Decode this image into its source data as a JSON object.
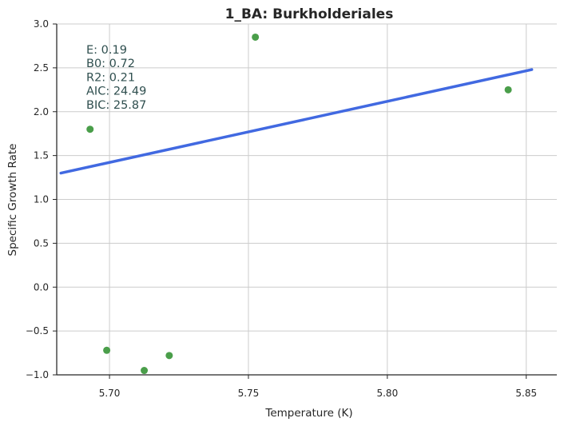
{
  "chart_data": {
    "type": "scatter",
    "title": "1_BA: Burkholderiales",
    "xlabel": "Temperature (K)",
    "ylabel": "Specific Growth Rate",
    "xlim": [
      5.681,
      5.861
    ],
    "ylim": [
      -1.0,
      3.0
    ],
    "xticks": [
      5.7,
      5.75,
      5.8,
      5.85
    ],
    "xtick_labels": [
      "5.70",
      "5.75",
      "5.80",
      "5.85"
    ],
    "yticks": [
      -1.0,
      -0.5,
      0.0,
      0.5,
      1.0,
      1.5,
      2.0,
      2.5,
      3.0
    ],
    "ytick_labels": [
      "−1.0",
      "−0.5",
      "0.0",
      "0.5",
      "1.0",
      "1.5",
      "2.0",
      "2.5",
      "3.0"
    ],
    "grid": true,
    "points": {
      "color": "#4a9e4a",
      "x": [
        5.693,
        5.699,
        5.7125,
        5.7215,
        5.7525,
        5.8435
      ],
      "y": [
        1.8,
        -0.72,
        -0.95,
        -0.78,
        2.85,
        2.25
      ]
    },
    "fit_line": {
      "color": "#4169e1",
      "x": [
        5.6825,
        5.852
      ],
      "y": [
        1.3,
        2.48
      ]
    },
    "annotation": {
      "lines": [
        "E:  0.19",
        "B0:  0.72",
        "R2:  0.21",
        "AIC: 24.49",
        "BIC: 25.87"
      ],
      "color": "#2f4f4f"
    }
  }
}
